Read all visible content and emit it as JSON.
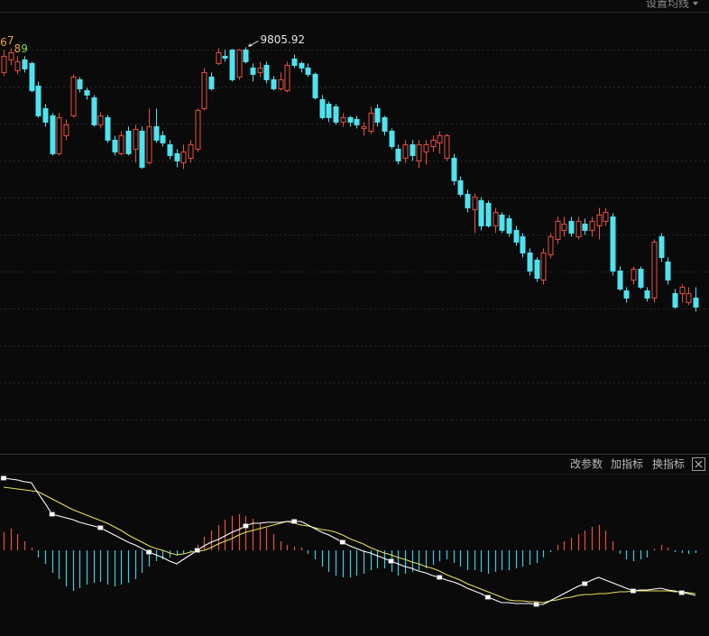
{
  "ma_settings": "设置均线",
  "toolbar": {
    "edit_params": "改参数",
    "add_indicator": "加指标",
    "switch_indicator": "换指标"
  },
  "chart_data": [
    {
      "type": "candlestick",
      "up_color": "#e8503e",
      "down_color": "#4fe3f0",
      "grid": true,
      "ylim": [
        5330,
        10190
      ],
      "td_counts": [
        6,
        7,
        8,
        9
      ],
      "td_colors": [
        "#f0a030",
        "#f0a030",
        "#f0a030",
        "#7fe04a"
      ],
      "open": [
        9526,
        9666,
        9546,
        9666,
        9626,
        9376,
        9126,
        9046,
        8626,
        8826,
        9046,
        9446,
        9326,
        9246,
        8946,
        9026,
        8776,
        8626,
        8876,
        8676,
        8876,
        8526,
        8926,
        8826,
        8726,
        8626,
        8526,
        8576,
        8676,
        9126,
        9476,
        9626,
        9706,
        9776,
        9476,
        9776,
        9576,
        9526,
        9606,
        9446,
        9346,
        9326,
        9676,
        9626,
        9576,
        9506,
        9226,
        9176,
        9146,
        8976,
        9026,
        9006,
        8906,
        8876,
        9126,
        9026,
        8876,
        8676,
        8576,
        8726,
        8546,
        8646,
        8706,
        8746,
        8576,
        8576,
        8326,
        8176,
        8006,
        8106,
        8076,
        7826,
        7946,
        7906,
        7776,
        7706,
        7526,
        7446,
        7226,
        7506,
        7676,
        7776,
        7876,
        7706,
        7846,
        7776,
        7826,
        7876,
        7926,
        7326,
        7106,
        7226,
        7346,
        7106,
        7026,
        7706,
        7426,
        7076,
        7076,
        6976,
        7026
      ],
      "high": [
        9776,
        9796,
        9706,
        9706,
        9646,
        9426,
        9176,
        9076,
        9076,
        9006,
        9506,
        9476,
        9356,
        9276,
        9086,
        9056,
        8826,
        8876,
        8926,
        8946,
        8926,
        9126,
        9126,
        8876,
        8776,
        8676,
        8726,
        8776,
        9126,
        9576,
        9526,
        9796,
        9776,
        9786,
        9786,
        9805.92,
        9626,
        9646,
        9646,
        9486,
        9526,
        9646,
        9726,
        9646,
        9626,
        9526,
        9276,
        9206,
        9176,
        9076,
        9046,
        9046,
        8976,
        9146,
        9176,
        9046,
        8906,
        8726,
        8776,
        8776,
        8776,
        8776,
        8826,
        8876,
        8846,
        8626,
        8376,
        8226,
        8186,
        8146,
        8106,
        8026,
        7976,
        7946,
        7826,
        7746,
        7576,
        7476,
        7576,
        7746,
        7926,
        7926,
        7926,
        7926,
        7906,
        7926,
        8026,
        8026,
        7966,
        7376,
        7146,
        7376,
        7376,
        7146,
        7676,
        7746,
        7476,
        7126,
        7176,
        7146,
        7146
      ],
      "low": [
        9486,
        9606,
        9506,
        9526,
        9306,
        9026,
        8926,
        8606,
        8606,
        8776,
        9026,
        9306,
        9226,
        8926,
        8906,
        8746,
        8606,
        8606,
        8606,
        8526,
        8456,
        8506,
        8746,
        8706,
        8566,
        8476,
        8456,
        8526,
        8646,
        9106,
        9326,
        9606,
        9646,
        9426,
        9446,
        9626,
        9426,
        9476,
        9406,
        9326,
        9326,
        9306,
        9576,
        9526,
        9476,
        9226,
        9006,
        8976,
        8946,
        8926,
        8926,
        8906,
        8826,
        8846,
        8926,
        8826,
        8676,
        8506,
        8526,
        8546,
        8466,
        8506,
        8646,
        8626,
        8546,
        8276,
        8146,
        7976,
        7746,
        7776,
        7806,
        7746,
        7746,
        7706,
        7606,
        7476,
        7276,
        7206,
        7176,
        7466,
        7626,
        7706,
        7706,
        7676,
        7726,
        7706,
        7676,
        7826,
        7276,
        7106,
        6976,
        7176,
        7126,
        6986,
        6976,
        7426,
        7176,
        6906,
        6976,
        6946,
        6876
      ],
      "close": [
        9706,
        9746,
        9646,
        9566,
        9326,
        9046,
        8976,
        8626,
        9026,
        8946,
        9476,
        9346,
        9276,
        8946,
        9046,
        8776,
        8646,
        8826,
        8626,
        8896,
        8476,
        8926,
        8776,
        8746,
        8606,
        8546,
        8646,
        8726,
        9106,
        9526,
        9346,
        9746,
        9686,
        9446,
        9776,
        9646,
        9506,
        9576,
        9446,
        9346,
        9446,
        9606,
        9606,
        9576,
        9506,
        9246,
        9026,
        9026,
        8976,
        9026,
        8976,
        8946,
        8926,
        9076,
        8976,
        8876,
        8706,
        8546,
        8726,
        8606,
        8726,
        8726,
        8776,
        8826,
        8826,
        8326,
        8176,
        8026,
        8146,
        7826,
        7826,
        7976,
        7776,
        7746,
        7646,
        7526,
        7326,
        7246,
        7526,
        7706,
        7876,
        7846,
        7746,
        7876,
        7776,
        7876,
        7946,
        7976,
        7326,
        7126,
        7026,
        7346,
        7146,
        7026,
        7646,
        7476,
        7226,
        6926,
        7146,
        7076,
        6926
      ]
    },
    {
      "type": "macd",
      "ylim": [
        -450,
        450
      ],
      "hist_up_color": "#e8503e",
      "hist_down_color": "#3fc8e0",
      "dif_color": "#ffffff",
      "dea_color": "#e6df5a",
      "histogram": [
        100,
        120,
        90,
        50,
        15,
        -40,
        -75,
        -125,
        -160,
        -200,
        -225,
        -210,
        -190,
        -180,
        -175,
        -190,
        -200,
        -190,
        -180,
        -160,
        -125,
        -90,
        -60,
        -50,
        -40,
        -30,
        -20,
        -10,
        30,
        75,
        110,
        140,
        170,
        190,
        200,
        190,
        175,
        150,
        125,
        90,
        50,
        30,
        20,
        15,
        -20,
        -50,
        -90,
        -120,
        -140,
        -150,
        -150,
        -140,
        -130,
        -110,
        -100,
        -100,
        -120,
        -140,
        -130,
        -120,
        -110,
        -100,
        -80,
        -60,
        -50,
        -70,
        -90,
        -110,
        -110,
        -120,
        -130,
        -120,
        -110,
        -110,
        -100,
        -90,
        -80,
        -70,
        -40,
        -10,
        30,
        50,
        70,
        90,
        110,
        130,
        140,
        110,
        50,
        -20,
        -50,
        -60,
        -50,
        -40,
        10,
        30,
        15,
        -10,
        -15,
        -20,
        -15
      ],
      "dif": [
        400,
        395,
        390,
        380,
        375,
        315,
        260,
        200,
        190,
        180,
        170,
        155,
        145,
        135,
        125,
        105,
        85,
        65,
        45,
        30,
        10,
        -10,
        -25,
        -40,
        -60,
        -75,
        -50,
        -25,
        0,
        25,
        45,
        60,
        80,
        100,
        115,
        135,
        150,
        150,
        155,
        155,
        155,
        160,
        160,
        160,
        140,
        120,
        100,
        85,
        65,
        45,
        25,
        10,
        -5,
        -15,
        -30,
        -45,
        -60,
        -75,
        -90,
        -100,
        -115,
        -125,
        -140,
        -150,
        -165,
        -175,
        -190,
        -210,
        -225,
        -240,
        -260,
        -275,
        -290,
        -290,
        -295,
        -295,
        -295,
        -300,
        -300,
        -280,
        -260,
        -240,
        -220,
        -200,
        -185,
        -165,
        -150,
        -165,
        -180,
        -195,
        -210,
        -225,
        -220,
        -220,
        -215,
        -210,
        -220,
        -225,
        -235,
        -240,
        -250
      ],
      "dea": [
        350,
        345,
        340,
        335,
        330,
        325,
        305,
        285,
        265,
        245,
        225,
        210,
        195,
        180,
        165,
        150,
        130,
        110,
        85,
        65,
        45,
        25,
        10,
        0,
        -15,
        -25,
        -20,
        -10,
        -5,
        0,
        15,
        35,
        50,
        65,
        85,
        100,
        110,
        120,
        130,
        140,
        150,
        160,
        150,
        140,
        135,
        125,
        115,
        110,
        100,
        85,
        65,
        50,
        35,
        15,
        0,
        -15,
        -25,
        -40,
        -50,
        -65,
        -75,
        -90,
        -100,
        -115,
        -135,
        -150,
        -165,
        -185,
        -200,
        -215,
        -230,
        -245,
        -260,
        -275,
        -280,
        -280,
        -285,
        -285,
        -290,
        -280,
        -275,
        -265,
        -260,
        -250,
        -245,
        -245,
        -240,
        -240,
        -235,
        -230,
        -230,
        -225,
        -225,
        -225,
        -225,
        -225,
        -225,
        -230,
        -230,
        -235,
        -240
      ]
    }
  ]
}
